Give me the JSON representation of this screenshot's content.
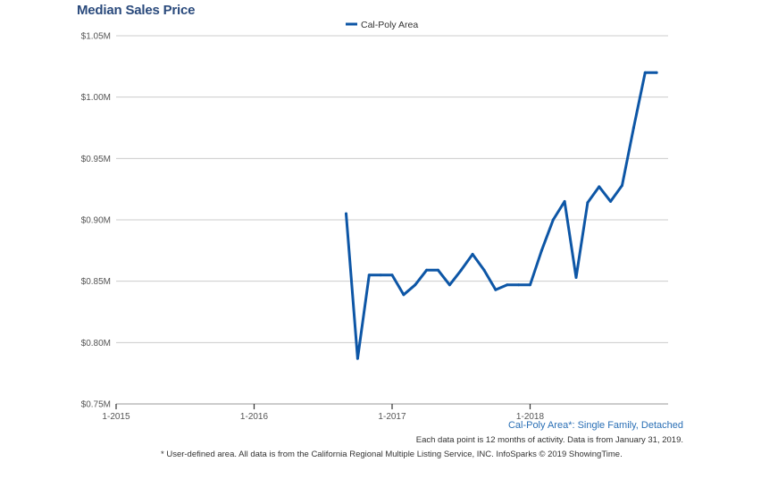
{
  "chart_data": {
    "type": "line",
    "title": "Median Sales Price",
    "subtitle": "Cal-Poly Area*: Single Family, Detached",
    "y_tick_labels": [
      "$0.75M",
      "$0.80M",
      "$0.85M",
      "$0.90M",
      "$0.95M",
      "$1.00M",
      "$1.05M"
    ],
    "y_ticks": [
      0.75,
      0.8,
      0.85,
      0.9,
      0.95,
      1.0,
      1.05
    ],
    "ylim": [
      0.75,
      1.05
    ],
    "x_tick_labels": [
      "1-2015",
      "1-2016",
      "1-2017",
      "1-2018"
    ],
    "x_ticks": [
      "2015-01",
      "2016-01",
      "2017-01",
      "2018-01"
    ],
    "xlim": [
      "2015-01",
      "2019-01"
    ],
    "grid": true,
    "legend_position": "top-center",
    "color": "#0d56a6",
    "series": [
      {
        "name": "Cal-Poly Area",
        "x": [
          "2016-09",
          "2016-10",
          "2016-11",
          "2016-12",
          "2017-01",
          "2017-02",
          "2017-03",
          "2017-04",
          "2017-05",
          "2017-06",
          "2017-07",
          "2017-08",
          "2017-09",
          "2017-10",
          "2017-11",
          "2017-12",
          "2018-01",
          "2018-02",
          "2018-03",
          "2018-04",
          "2018-05",
          "2018-06",
          "2018-07",
          "2018-08",
          "2018-09",
          "2018-10",
          "2018-11",
          "2018-12"
        ],
        "values": [
          0.905,
          0.787,
          0.855,
          0.855,
          0.855,
          0.839,
          0.847,
          0.859,
          0.859,
          0.847,
          0.859,
          0.872,
          0.859,
          0.843,
          0.847,
          0.847,
          0.847,
          0.875,
          0.9,
          0.915,
          0.853,
          0.914,
          0.927,
          0.915,
          0.928,
          0.975,
          1.02,
          1.02
        ]
      }
    ]
  },
  "notes": {
    "activity": "Each data point is 12 months of activity. Data is from January 31, 2019.",
    "footer": "* User-defined area. All data is from the California Regional Multiple Listing Service, INC. InfoSparks © 2019 ShowingTime."
  }
}
